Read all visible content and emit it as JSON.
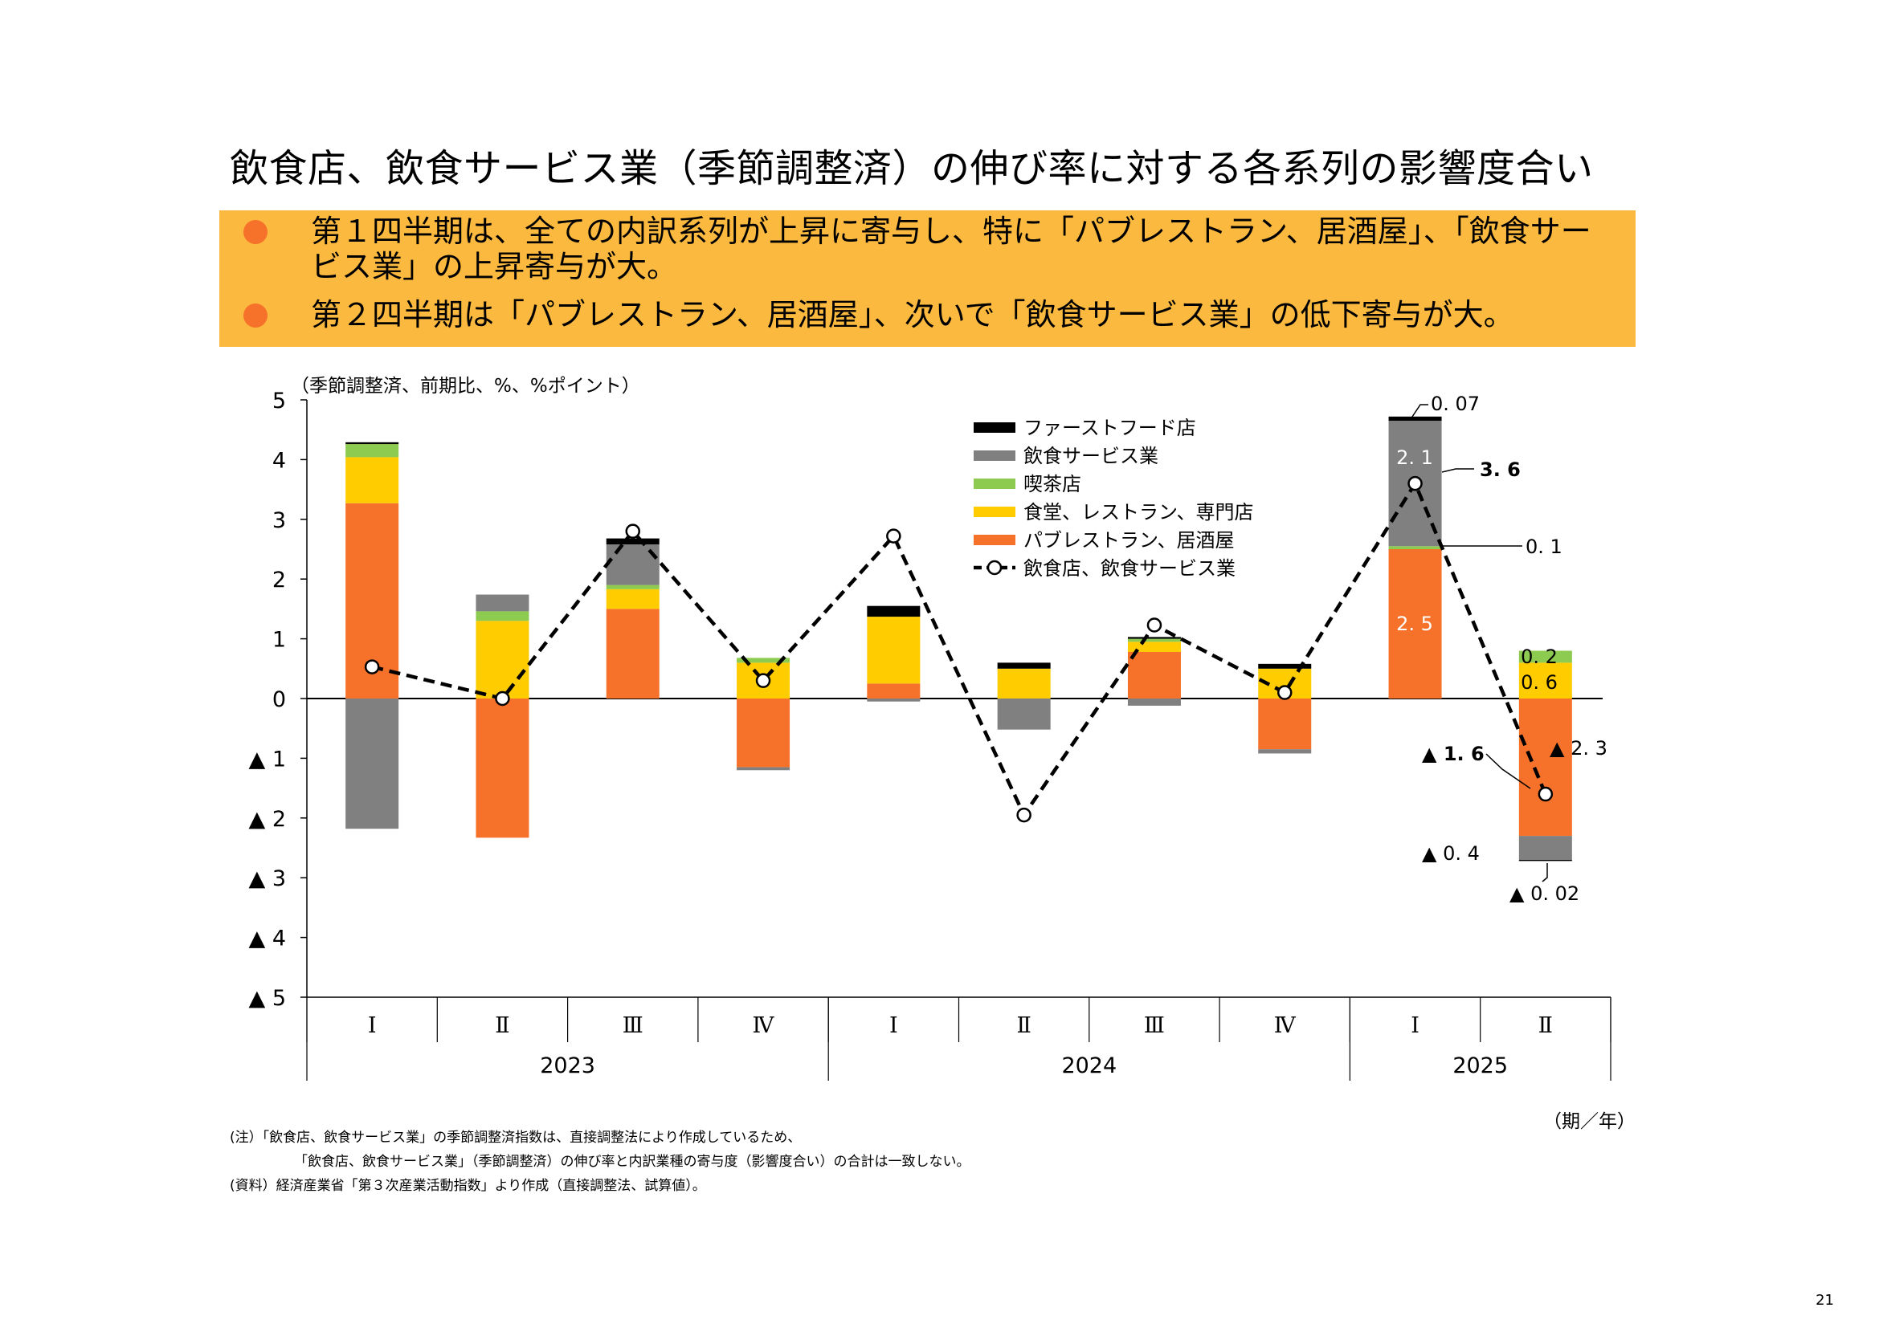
{
  "title": "飲食店、飲食サービス業（季節調整済）の伸び率に対する各系列の影響度合い",
  "summary": {
    "bullet1": "第１四半期は、全ての内訳系列が上昇に寄与し、特に「パブレストラン、居酒屋」、「飲食サービス業」の上昇寄与が大。",
    "bullet2": "第２四半期は「パブレストラン、居酒屋」、次いで「飲食サービス業」の低下寄与が大。"
  },
  "chart_data": {
    "type": "bar",
    "stacked": true,
    "ylabel": "（季節調整済、前期比、%、%ポイント）",
    "xlabel": "（期／年）",
    "ylim": [
      -5,
      5
    ],
    "yticks": [
      "5",
      "4",
      "3",
      "2",
      "1",
      "0",
      "▲ 1",
      "▲ 2",
      "▲ 3",
      "▲ 4",
      "▲ 5"
    ],
    "categories": [
      "Ⅰ",
      "Ⅱ",
      "Ⅲ",
      "Ⅳ",
      "Ⅰ",
      "Ⅱ",
      "Ⅲ",
      "Ⅳ",
      "Ⅰ",
      "Ⅱ"
    ],
    "years": [
      {
        "label": "2023",
        "count": 4
      },
      {
        "label": "2024",
        "count": 4
      },
      {
        "label": "2025",
        "count": 2
      }
    ],
    "series": [
      {
        "name": "パブレストラン、居酒屋",
        "color": "#F6722A",
        "values": [
          3.27,
          -2.33,
          1.5,
          -1.15,
          0.25,
          0.0,
          0.78,
          -0.85,
          2.5,
          -2.3
        ]
      },
      {
        "name": "食堂、レストラン、専門店",
        "color": "#FFCC00",
        "values": [
          0.77,
          1.3,
          0.33,
          0.6,
          1.12,
          0.5,
          0.17,
          0.5,
          0.0,
          0.6
        ]
      },
      {
        "name": "喫茶店",
        "color": "#8CCB4F",
        "values": [
          0.22,
          0.16,
          0.07,
          0.08,
          0.0,
          0.0,
          0.05,
          0.0,
          0.05,
          0.2
        ]
      },
      {
        "name": "飲食サービス業",
        "color": "#808080",
        "values": [
          -2.18,
          0.28,
          0.68,
          -0.05,
          -0.05,
          -0.52,
          -0.12,
          -0.07,
          2.1,
          -0.4
        ]
      },
      {
        "name": "ファーストフード店",
        "color": "#000000",
        "values": [
          0.03,
          0.0,
          0.1,
          0.0,
          0.18,
          0.1,
          0.03,
          0.08,
          0.07,
          -0.02
        ]
      }
    ],
    "line": {
      "name": "飲食店、飲食サービス業",
      "values": [
        0.53,
        0.0,
        2.8,
        0.3,
        2.72,
        -1.95,
        1.23,
        0.1,
        3.6,
        -1.6
      ]
    },
    "annotations": [
      {
        "text": "0. 07",
        "bold": false
      },
      {
        "text": "2. 1",
        "bold": false
      },
      {
        "text": "3. 6",
        "bold": true
      },
      {
        "text": "0. 1",
        "bold": false
      },
      {
        "text": "2. 5",
        "bold": false
      },
      {
        "text": "0. 2",
        "bold": false
      },
      {
        "text": "0. 6",
        "bold": false
      },
      {
        "text": "▲ 1. 6",
        "bold": true
      },
      {
        "text": "▲ 2. 3",
        "bold": false
      },
      {
        "text": "▲ 0. 4",
        "bold": false
      },
      {
        "text": "▲ 0. 02",
        "bold": false
      }
    ]
  },
  "notes": {
    "note1": "(注）「飲食店、飲食サービス業」の季節調整済指数は、直接調整法により作成しているため、",
    "note2": "「飲食店、飲食サービス業」（季節調整済）の伸び率と内訳業種の寄与度（影響度合い）の合計は一致しない。",
    "note3": "(資料）経済産業省「第３次産業活動指数」より作成（直接調整法、試算値）。"
  },
  "page_number": "21"
}
